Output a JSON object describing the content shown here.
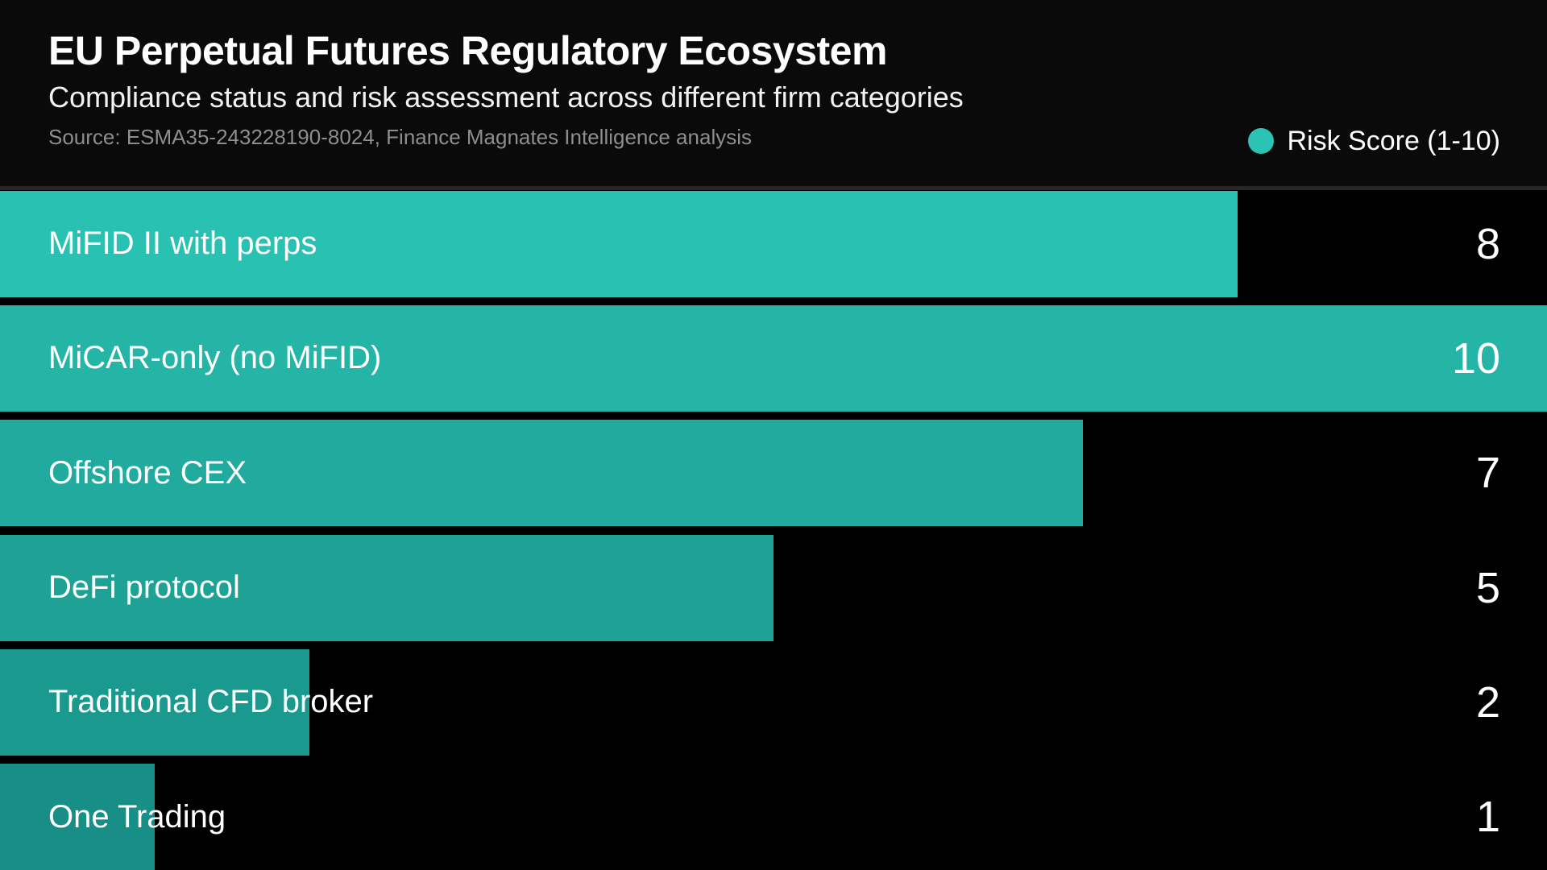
{
  "header": {
    "title": "EU Perpetual Futures Regulatory Ecosystem",
    "subtitle": "Compliance status and risk assessment across different firm categories",
    "source": "Source: ESMA35-243228190-8024, Finance Magnates Intelligence analysis"
  },
  "legend": {
    "label": "Risk Score (1-10)",
    "color": "#2bc3b3"
  },
  "colors": {
    "background": "#000000",
    "header_background": "#0a0a0a",
    "rule": "#26262b",
    "text": "#ffffff",
    "muted_text": "#8d8d92"
  },
  "chart_data": {
    "type": "bar",
    "orientation": "horizontal",
    "title": "EU Perpetual Futures Regulatory Ecosystem",
    "subtitle": "Compliance status and risk assessment across different firm categories",
    "source": "Source: ESMA35-243228190-8024, Finance Magnates Intelligence analysis",
    "xlabel": "",
    "ylabel": "",
    "xlim": [
      0,
      10
    ],
    "grid": false,
    "legend_position": "top-right",
    "categories": [
      "MiFID II with perps",
      "MiCAR-only (no MiFID)",
      "Offshore CEX",
      "DeFi protocol",
      "Traditional CFD broker",
      "One Trading"
    ],
    "series": [
      {
        "name": "Risk Score (1-10)",
        "values": [
          8,
          10,
          7,
          5,
          2,
          1
        ]
      }
    ],
    "bar_colors": [
      "#29c1b2",
      "#24b5a7",
      "#20ab9e",
      "#1da295",
      "#1a998e",
      "#178f86"
    ]
  }
}
